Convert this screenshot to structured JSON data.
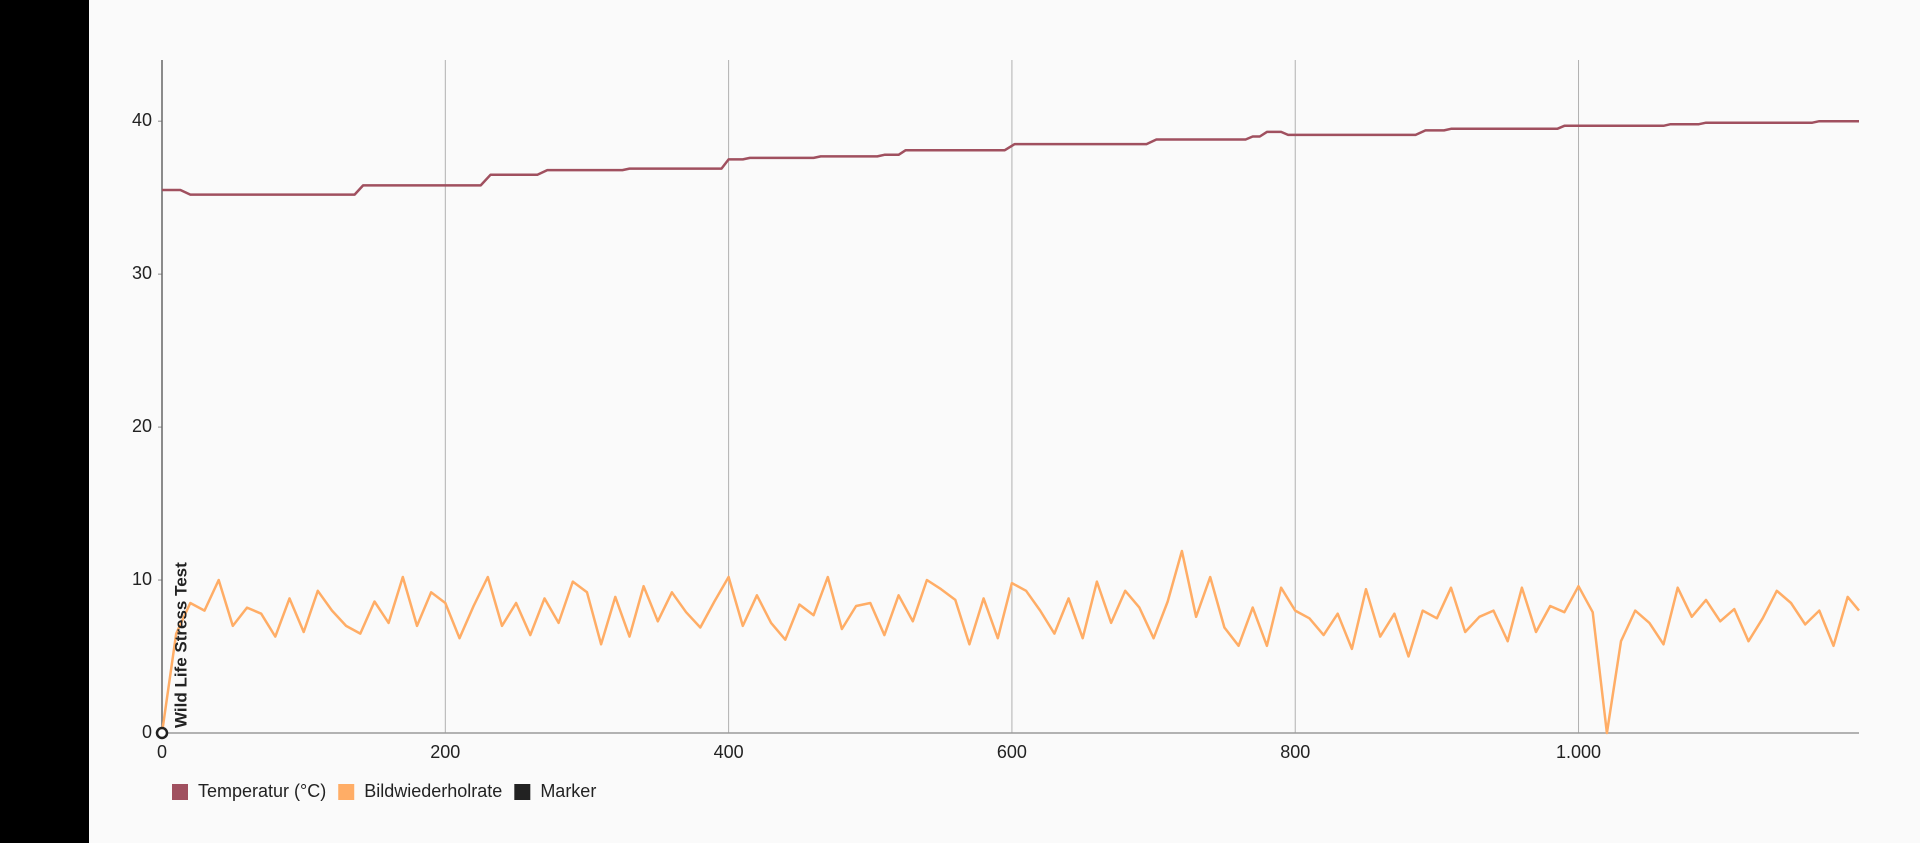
{
  "chart_data": {
    "type": "line",
    "xlim": [
      0,
      1198
    ],
    "xticks": [
      0,
      200,
      400,
      600,
      800,
      {
        "value": 1000,
        "label": "1.000"
      }
    ],
    "ylim": [
      0,
      44
    ],
    "yticks": [
      0,
      10,
      20,
      30,
      40
    ],
    "grid": "x",
    "legend": "bottom-left",
    "series": [
      {
        "name": "Temperatur (°C)",
        "color": "#a0505f",
        "x": [
          0,
          13,
          20,
          136,
          142,
          225,
          232,
          265,
          272,
          325,
          330,
          395,
          400,
          410,
          415,
          460,
          465,
          505,
          510,
          520,
          525,
          595,
          602,
          695,
          702,
          765,
          770,
          775,
          780,
          790,
          795,
          885,
          892,
          905,
          910,
          985,
          990,
          1060,
          1065,
          1085,
          1090,
          1165,
          1170,
          1198
        ],
        "values": [
          35.5,
          35.5,
          35.2,
          35.2,
          35.8,
          35.8,
          36.5,
          36.5,
          36.8,
          36.8,
          36.9,
          36.9,
          37.5,
          37.5,
          37.6,
          37.6,
          37.7,
          37.7,
          37.8,
          37.8,
          38.1,
          38.1,
          38.5,
          38.5,
          38.8,
          38.8,
          39.0,
          39.0,
          39.3,
          39.3,
          39.1,
          39.1,
          39.4,
          39.4,
          39.5,
          39.5,
          39.7,
          39.7,
          39.8,
          39.8,
          39.9,
          39.9,
          40.0,
          40.0
        ]
      },
      {
        "name": "Bildwiederholrate",
        "color": "#ffad66",
        "x": [
          0,
          10,
          20,
          30,
          40,
          50,
          60,
          70,
          80,
          90,
          100,
          110,
          120,
          130,
          140,
          150,
          160,
          170,
          180,
          190,
          200,
          210,
          220,
          230,
          240,
          250,
          260,
          270,
          280,
          290,
          300,
          310,
          320,
          330,
          340,
          350,
          360,
          370,
          380,
          390,
          400,
          410,
          420,
          430,
          440,
          450,
          460,
          470,
          480,
          490,
          500,
          510,
          520,
          530,
          540,
          550,
          560,
          570,
          580,
          590,
          600,
          610,
          620,
          630,
          640,
          650,
          660,
          670,
          680,
          690,
          700,
          710,
          720,
          730,
          740,
          750,
          760,
          770,
          780,
          790,
          800,
          810,
          820,
          830,
          840,
          850,
          860,
          870,
          880,
          890,
          900,
          910,
          920,
          930,
          940,
          950,
          960,
          970,
          980,
          990,
          1000,
          1010,
          1020,
          1030,
          1040,
          1050,
          1060,
          1070,
          1080,
          1090,
          1100,
          1110,
          1120,
          1130,
          1140,
          1150,
          1160,
          1170,
          1180,
          1190,
          1198
        ],
        "values": [
          0,
          6.5,
          8.5,
          8.0,
          10.0,
          7.0,
          8.2,
          7.8,
          6.3,
          8.8,
          6.6,
          9.3,
          8.0,
          7.0,
          6.5,
          8.6,
          7.2,
          10.2,
          7.0,
          9.2,
          8.5,
          6.2,
          8.3,
          10.2,
          7.0,
          8.5,
          6.4,
          8.8,
          7.2,
          9.9,
          9.2,
          5.8,
          8.9,
          6.3,
          9.6,
          7.3,
          9.2,
          7.9,
          6.9,
          8.6,
          10.2,
          7.0,
          9.0,
          7.2,
          6.1,
          8.4,
          7.7,
          10.2,
          6.8,
          8.3,
          8.5,
          6.4,
          9.0,
          7.3,
          10.0,
          9.4,
          8.7,
          5.8,
          8.8,
          6.2,
          9.8,
          9.3,
          8.0,
          6.5,
          8.8,
          6.2,
          9.9,
          7.2,
          9.3,
          8.2,
          6.2,
          8.6,
          11.9,
          7.6,
          10.2,
          6.9,
          5.7,
          8.2,
          5.7,
          9.5,
          8.0,
          7.5,
          6.4,
          7.8,
          5.5,
          9.4,
          6.3,
          7.8,
          5.0,
          8.0,
          7.5,
          9.5,
          6.6,
          7.6,
          8.0,
          6.0,
          9.5,
          6.6,
          8.3,
          7.9,
          9.6,
          7.9,
          0,
          6.0,
          8.0,
          7.2,
          5.8,
          9.5,
          7.6,
          8.7,
          7.3,
          8.1,
          6.0,
          7.5,
          9.3,
          8.5,
          7.1,
          8.0,
          5.7,
          8.9,
          8.0
        ]
      },
      {
        "name": "Marker",
        "color": "#222222",
        "x": [
          0
        ],
        "values": [
          0
        ],
        "labels": [
          "Wild Life Stress Test"
        ]
      }
    ]
  }
}
